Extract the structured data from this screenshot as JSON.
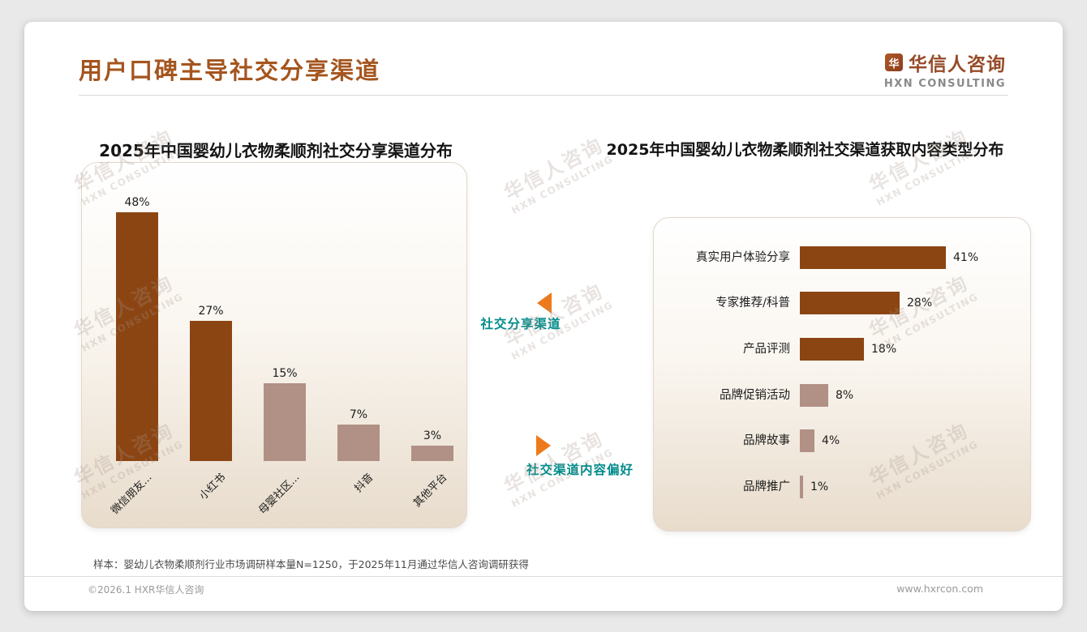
{
  "page": {
    "title": "用户口碑主导社交分享渠道",
    "watermark_line1": "华信人咨询",
    "watermark_line2": "HXN CONSULTING",
    "footnote": "样本：婴幼儿衣物柔顺剂行业市场调研样本量N=1250，于2025年11月通过华信人咨询调研获得",
    "footer_left": "©2026.1 HXR华信人咨询",
    "footer_right": "www.hxrcon.com"
  },
  "logo": {
    "mark": "华",
    "name": "华信人咨询",
    "sub": "HXN CONSULTING"
  },
  "annotations": {
    "left_label": "社交分享渠道",
    "right_label": "社交渠道内容偏好"
  },
  "colors": {
    "accent_brown": "#8B4513",
    "accent_rosy": "#B19086",
    "title_brown": "#a4551e",
    "teal": "#008b8b",
    "orange_arrow": "#ec7a1c"
  },
  "chart_data": [
    {
      "type": "bar",
      "orientation": "vertical",
      "title": "2025年中国婴幼儿衣物柔顺剂社交分享渠道分布",
      "categories": [
        "微信朋友...",
        "小红书",
        "母婴社区...",
        "抖音",
        "其他平台"
      ],
      "values": [
        48,
        27,
        15,
        7,
        3
      ],
      "unit": "%",
      "colors": [
        "#8B4513",
        "#8B4513",
        "#B19086",
        "#B19086",
        "#B19086"
      ],
      "ylim": [
        0,
        50
      ],
      "grid": false,
      "legend": "none"
    },
    {
      "type": "bar",
      "orientation": "horizontal",
      "title": "2025年中国婴幼儿衣物柔顺剂社交渠道获取内容类型分布",
      "categories": [
        "真实用户体验分享",
        "专家推荐/科普",
        "产品评测",
        "品牌促销活动",
        "品牌故事",
        "品牌推广"
      ],
      "values": [
        41,
        28,
        18,
        8,
        4,
        1
      ],
      "unit": "%",
      "colors": [
        "#8B4513",
        "#8B4513",
        "#8B4513",
        "#B19086",
        "#B19086",
        "#B19086"
      ],
      "xlim": [
        0,
        45
      ],
      "grid": false,
      "legend": "none"
    }
  ]
}
